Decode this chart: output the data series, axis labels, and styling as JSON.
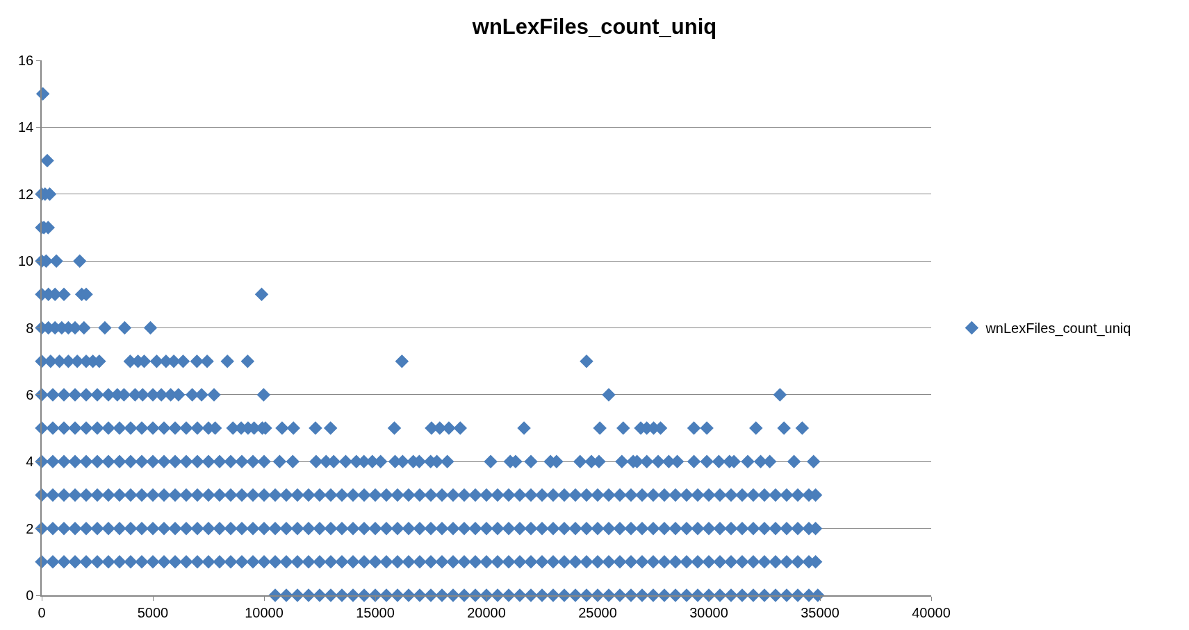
{
  "chart_data": {
    "type": "scatter",
    "title": "wnLexFiles_count_uniq",
    "marker": "diamond",
    "grid": "y",
    "legend": "right",
    "xlim": [
      0,
      40000
    ],
    "xticks": [
      0,
      5000,
      10000,
      15000,
      20000,
      25000,
      30000,
      35000,
      40000
    ],
    "ylim": [
      0,
      16
    ],
    "yticks": [
      0,
      2,
      4,
      6,
      8,
      10,
      12,
      14,
      16
    ],
    "series": [
      {
        "name": "wnLexFiles_count_uniq",
        "color": "#4a7ebb",
        "x": [
          0,
          500,
          1000,
          1500,
          2000,
          2500,
          3000,
          3500,
          4000,
          4500,
          5000,
          5500,
          6000,
          6500,
          7000,
          7500,
          8000,
          8500,
          9000,
          9500,
          10000,
          10500,
          11000,
          11500,
          12000,
          12500,
          13000,
          13500,
          14000,
          14500,
          15000,
          15500,
          16000,
          16500,
          17000,
          17500,
          18000,
          18500,
          19000,
          19500,
          20000,
          20500,
          21000,
          21500,
          22000,
          22500,
          23000,
          23500,
          24000,
          24500,
          25000,
          25500,
          26000,
          26500,
          27000,
          27500,
          28000,
          28500,
          29000,
          29500,
          30000,
          30500,
          31000,
          31500,
          32000,
          32500,
          33000,
          33500,
          34000,
          34500,
          34800,
          0,
          500,
          1000,
          1500,
          2000,
          2500,
          3000,
          3500,
          4000,
          4500,
          5000,
          5500,
          6000,
          6500,
          7000,
          7500,
          8000,
          8500,
          9000,
          9500,
          10000,
          10500,
          11000,
          11500,
          12000,
          12500,
          13000,
          13500,
          14000,
          14500,
          15000,
          15500,
          16000,
          16500,
          17000,
          17500,
          18000,
          18500,
          19000,
          19500,
          20000,
          20500,
          21000,
          21500,
          22000,
          22500,
          23000,
          23500,
          24000,
          24500,
          25000,
          25500,
          26000,
          26500,
          27000,
          27500,
          28000,
          28500,
          29000,
          29500,
          30000,
          30500,
          31000,
          31500,
          32000,
          32500,
          33000,
          33500,
          34000,
          34500,
          34800,
          0,
          500,
          1000,
          1500,
          2000,
          2500,
          3000,
          3500,
          4000,
          4500,
          5000,
          5500,
          6000,
          6500,
          7000,
          7500,
          8000,
          8500,
          9000,
          9500,
          10000,
          10500,
          11000,
          11500,
          12000,
          12500,
          13000,
          13500,
          14000,
          14500,
          15000,
          15500,
          16000,
          16500,
          17000,
          17500,
          18000,
          18500,
          19000,
          19500,
          20000,
          20500,
          21000,
          21500,
          22000,
          22500,
          23000,
          23500,
          24000,
          24500,
          25000,
          25500,
          26000,
          26500,
          27000,
          27500,
          28000,
          28500,
          29000,
          29500,
          30000,
          30500,
          31000,
          31500,
          32000,
          32500,
          33000,
          33500,
          34000,
          34500,
          34800,
          10500,
          11000,
          11500,
          12000,
          12500,
          13000,
          13500,
          14000,
          14500,
          15000,
          15500,
          16000,
          16500,
          17000,
          17500,
          18000,
          18500,
          19000,
          19500,
          20000,
          20500,
          21000,
          21500,
          22000,
          22500,
          23000,
          23500,
          24000,
          24500,
          25000,
          25500,
          26000,
          26500,
          27000,
          27500,
          28000,
          28500,
          29000,
          29500,
          30000,
          30500,
          31000,
          31500,
          32000,
          32500,
          33000,
          33500,
          34000,
          34500,
          34900,
          0,
          500,
          1000,
          1500,
          2000,
          2500,
          3000,
          3500,
          4000,
          4500,
          5000,
          5500,
          6000,
          6500,
          7000,
          7500,
          8000,
          8500,
          9000,
          9500,
          10000,
          10700,
          11290,
          12340,
          12790,
          13130,
          13670,
          14150,
          14490,
          14870,
          15240,
          15890,
          16230,
          16710,
          16980,
          17490,
          17770,
          18240,
          20190,
          21070,
          21310,
          22000,
          22880,
          23150,
          24210,
          24720,
          25060,
          26090,
          26600,
          26770,
          27210,
          27720,
          28200,
          28580,
          29330,
          29910,
          30450,
          30930,
          31130,
          31750,
          32330,
          32740,
          33830,
          34710,
          0,
          500,
          1000,
          1500,
          2000,
          2500,
          3000,
          3500,
          4000,
          4500,
          5000,
          5500,
          6000,
          6500,
          7000,
          7500,
          7800,
          8600,
          8970,
          9280,
          9550,
          9920,
          10060,
          10810,
          11320,
          12310,
          12990,
          15860,
          17530,
          17900,
          18310,
          18820,
          21690,
          25100,
          26150,
          26940,
          27210,
          27520,
          27830,
          29330,
          29910,
          32120,
          33380,
          34200,
          0,
          500,
          1000,
          1500,
          2000,
          2500,
          3000,
          3400,
          3700,
          4200,
          4540,
          5000,
          5380,
          5800,
          6150,
          6770,
          7190,
          7750,
          9980,
          25500,
          33200,
          0,
          400,
          800,
          1200,
          1600,
          2000,
          2300,
          2590,
          3980,
          4330,
          4610,
          5170,
          5590,
          5940,
          6360,
          6980,
          7440,
          8350,
          9260,
          16200,
          24500,
          0,
          300,
          600,
          900,
          1200,
          1500,
          1900,
          2840,
          3730,
          4890,
          0,
          300,
          600,
          1000,
          1800,
          2000,
          9890,
          0,
          200,
          660,
          1710,
          0,
          100,
          290,
          0,
          150,
          360,
          250,
          50
        ],
        "values": [
          1,
          1,
          1,
          1,
          1,
          1,
          1,
          1,
          1,
          1,
          1,
          1,
          1,
          1,
          1,
          1,
          1,
          1,
          1,
          1,
          1,
          1,
          1,
          1,
          1,
          1,
          1,
          1,
          1,
          1,
          1,
          1,
          1,
          1,
          1,
          1,
          1,
          1,
          1,
          1,
          1,
          1,
          1,
          1,
          1,
          1,
          1,
          1,
          1,
          1,
          1,
          1,
          1,
          1,
          1,
          1,
          1,
          1,
          1,
          1,
          1,
          1,
          1,
          1,
          1,
          1,
          1,
          1,
          1,
          1,
          1,
          2,
          2,
          2,
          2,
          2,
          2,
          2,
          2,
          2,
          2,
          2,
          2,
          2,
          2,
          2,
          2,
          2,
          2,
          2,
          2,
          2,
          2,
          2,
          2,
          2,
          2,
          2,
          2,
          2,
          2,
          2,
          2,
          2,
          2,
          2,
          2,
          2,
          2,
          2,
          2,
          2,
          2,
          2,
          2,
          2,
          2,
          2,
          2,
          2,
          2,
          2,
          2,
          2,
          2,
          2,
          2,
          2,
          2,
          2,
          2,
          2,
          2,
          2,
          2,
          2,
          2,
          2,
          2,
          2,
          2,
          2,
          3,
          3,
          3,
          3,
          3,
          3,
          3,
          3,
          3,
          3,
          3,
          3,
          3,
          3,
          3,
          3,
          3,
          3,
          3,
          3,
          3,
          3,
          3,
          3,
          3,
          3,
          3,
          3,
          3,
          3,
          3,
          3,
          3,
          3,
          3,
          3,
          3,
          3,
          3,
          3,
          3,
          3,
          3,
          3,
          3,
          3,
          3,
          3,
          3,
          3,
          3,
          3,
          3,
          3,
          3,
          3,
          3,
          3,
          3,
          3,
          3,
          3,
          3,
          3,
          3,
          3,
          3,
          3,
          3,
          3,
          3,
          0,
          0,
          0,
          0,
          0,
          0,
          0,
          0,
          0,
          0,
          0,
          0,
          0,
          0,
          0,
          0,
          0,
          0,
          0,
          0,
          0,
          0,
          0,
          0,
          0,
          0,
          0,
          0,
          0,
          0,
          0,
          0,
          0,
          0,
          0,
          0,
          0,
          0,
          0,
          0,
          0,
          0,
          0,
          0,
          0,
          0,
          0,
          0,
          0,
          0,
          4,
          4,
          4,
          4,
          4,
          4,
          4,
          4,
          4,
          4,
          4,
          4,
          4,
          4,
          4,
          4,
          4,
          4,
          4,
          4,
          4,
          4,
          4,
          4,
          4,
          4,
          4,
          4,
          4,
          4,
          4,
          4,
          4,
          4,
          4,
          4,
          4,
          4,
          4,
          4,
          4,
          4,
          4,
          4,
          4,
          4,
          4,
          4,
          4,
          4,
          4,
          4,
          4,
          4,
          4,
          4,
          4,
          4,
          4,
          4,
          4,
          4,
          4,
          4,
          5,
          5,
          5,
          5,
          5,
          5,
          5,
          5,
          5,
          5,
          5,
          5,
          5,
          5,
          5,
          5,
          5,
          5,
          5,
          5,
          5,
          5,
          5,
          5,
          5,
          5,
          5,
          5,
          5,
          5,
          5,
          5,
          5,
          5,
          5,
          5,
          5,
          5,
          5,
          5,
          5,
          5,
          5,
          5,
          6,
          6,
          6,
          6,
          6,
          6,
          6,
          6,
          6,
          6,
          6,
          6,
          6,
          6,
          6,
          6,
          6,
          6,
          6,
          6,
          6,
          7,
          7,
          7,
          7,
          7,
          7,
          7,
          7,
          7,
          7,
          7,
          7,
          7,
          7,
          7,
          7,
          7,
          7,
          7,
          7,
          7,
          8,
          8,
          8,
          8,
          8,
          8,
          8,
          8,
          8,
          8,
          9,
          9,
          9,
          9,
          9,
          9,
          9,
          10,
          10,
          10,
          10,
          11,
          11,
          11,
          12,
          12,
          12,
          13,
          15
        ]
      }
    ]
  }
}
